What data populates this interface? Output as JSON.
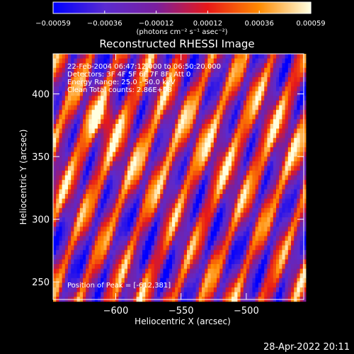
{
  "chart_data": {
    "type": "heatmap",
    "title": "Reconstructed RHESSI Image",
    "xlabel": "Heliocentric X (arcsec)",
    "ylabel": "Heliocentric Y (arcsec)",
    "xlim": [
      -648,
      -456
    ],
    "ylim": [
      236,
      432
    ],
    "x_ticks": [
      {
        "value": -600,
        "label": "−600"
      },
      {
        "value": -550,
        "label": "−550"
      },
      {
        "value": -500,
        "label": "−500"
      }
    ],
    "y_ticks": [
      {
        "value": 250,
        "label": "250"
      },
      {
        "value": 300,
        "label": "300"
      },
      {
        "value": 350,
        "label": "350"
      },
      {
        "value": 400,
        "label": "400"
      }
    ],
    "colorbar": {
      "range": [
        -0.00059,
        0.00059
      ],
      "tick_labels": [
        "−0.00059",
        "−0.00036",
        "−0.00012",
        "0.00012",
        "0.00036",
        "0.00059"
      ],
      "unit_label": "(photons cm⁻² s⁻¹ asec⁻²)",
      "colors": [
        "#0000ff",
        "#5a2bd0",
        "#7a1f9e",
        "#e81818",
        "#ff8a00",
        "#ffffe0"
      ]
    },
    "annotations": [
      "22-Feb-2004 06:47:12.000 to 06:50:20.000",
      "Detectors: 3F 4F 5F 6F 7F 8F, Att 0",
      "Energy Range: 25.0 - 50.0 keV",
      "Clean    Total counts: 2.86E+03"
    ],
    "peak_label": "Position of Peak = [-612,381]",
    "peak": {
      "x": -612,
      "y": 381
    }
  },
  "timestamp": "28-Apr-2022 20:11"
}
